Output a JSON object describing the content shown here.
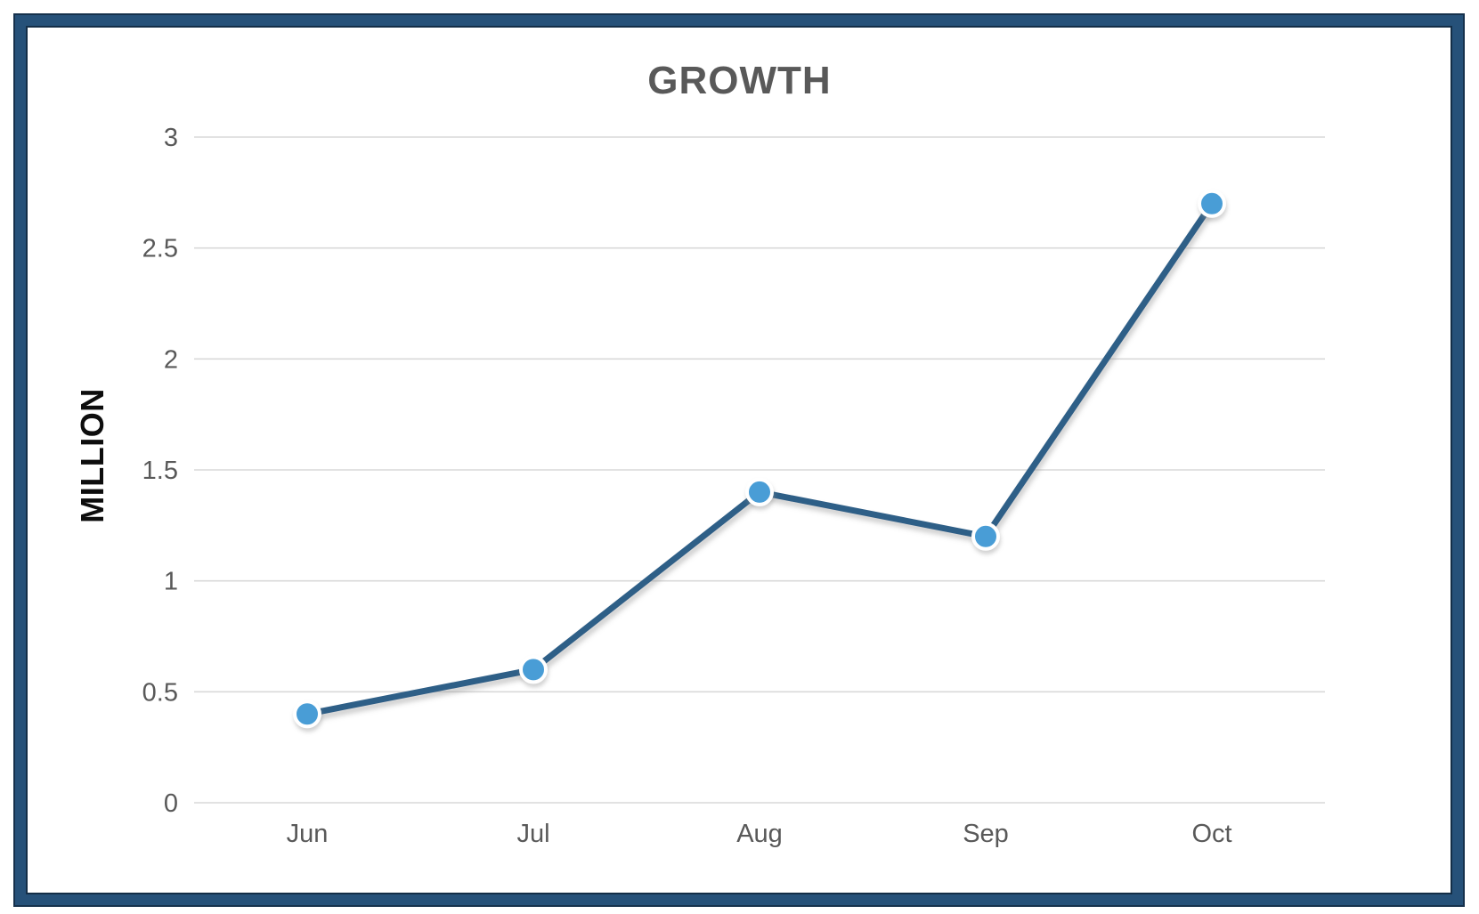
{
  "window": {
    "background_color": "#ffffff",
    "frame_color": "#265179",
    "frame_edge_color": "#142e47"
  },
  "chart_data": {
    "type": "line",
    "title": "GROWTH",
    "ylabel": "MILLION",
    "xlabel": "",
    "categories": [
      "Jun",
      "Jul",
      "Aug",
      "Sep",
      "Oct"
    ],
    "values": [
      0.4,
      0.6,
      1.4,
      1.2,
      2.7
    ],
    "ylim": [
      0,
      3
    ],
    "yticks": [
      0,
      0.5,
      1,
      1.5,
      2,
      2.5,
      3
    ],
    "ytick_labels": [
      "0",
      "0.5",
      "1",
      "1.5",
      "2",
      "2.5",
      "3"
    ],
    "grid": true,
    "legend": "none",
    "colors": {
      "line": "#2e5e87",
      "marker_fill": "#4a9dd6",
      "marker_border": "#ffffff",
      "gridline": "#d9d9d9",
      "tick_text": "#595959",
      "title_text": "#595959",
      "ylabel_text": "#0d0d0d"
    }
  }
}
